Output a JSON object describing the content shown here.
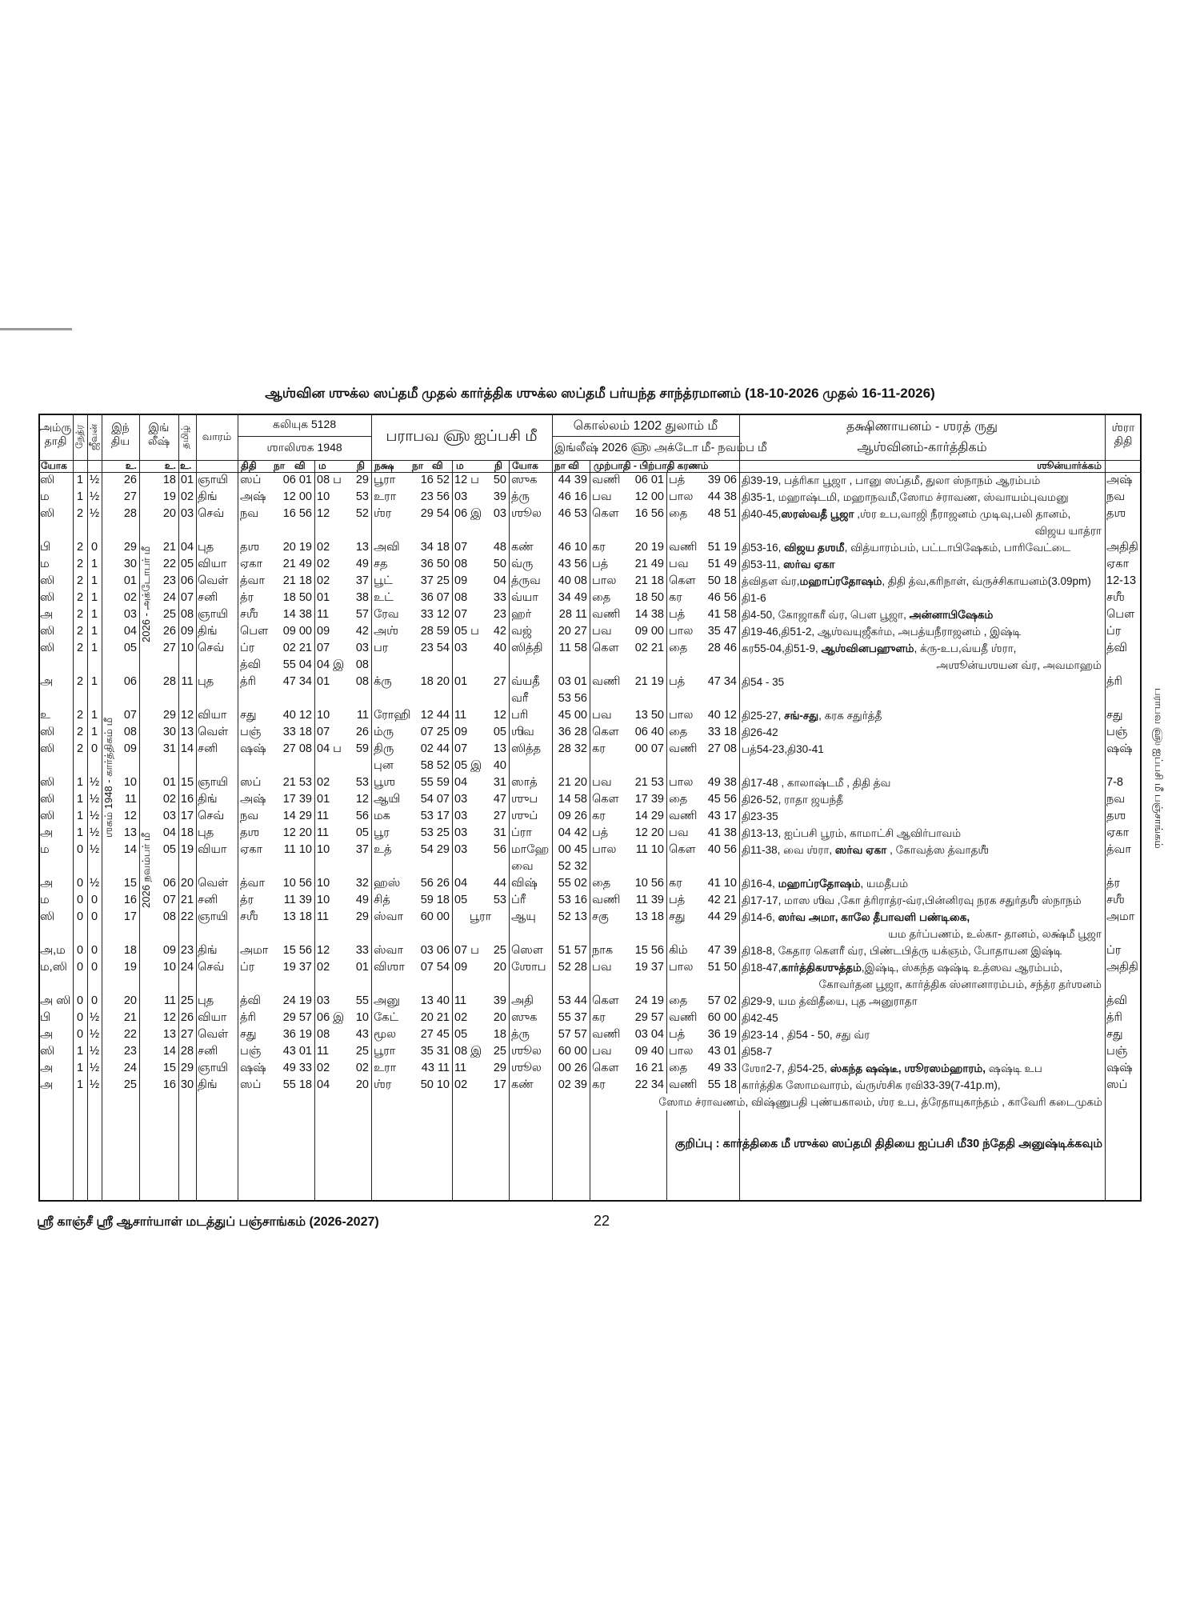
{
  "title": "ஆஶ்வின ஶுக்ல ஸப்தமீ முதல் கார்த்திக ஶுக்ல ஸப்தமீ பர்யந்த சாந்த்ரமானம் (18-10-2026 முதல் 16-11-2026)",
  "header": {
    "amrutadi_1": "அம்ரு",
    "amrutadi_2": "தாதி",
    "netra": "நேத்ர",
    "jeevan": "ஜீவன்",
    "indian_1": "இந்",
    "indian_2": "திய",
    "english_1": "இங்",
    "english_2": "லீஷ்",
    "tamil": "தமிழ்",
    "vaaram": "வாரம்",
    "kaliyuga": "கலியுக 5128",
    "shalishaka": "ஶாலிஶக 1948",
    "parabhava": "பராபவ ௵ ஐப்பசி மீ",
    "kollam": "கொல்லம் 1202 துலாம் மீ",
    "english_year": "இங்லீஷ் 2026 ௵ அக்டோ மீ- நவம்ப மீ",
    "dakshinayana": "தக்ஷிணாயனம் - ஶரத் ருது",
    "ashvina": "ஆஶ்வினம்-கார்த்திகம்",
    "shraddha_1": "ஶ்ரா",
    "shraddha_2": "திதி"
  },
  "subheader": {
    "yoga": "யோக",
    "u_indian": "உ.",
    "u_english": "உ.",
    "u_tamil": "உ.",
    "tithi": "திதி",
    "naa": "நா",
    "vi": "வி",
    "ma": "ம",
    "ni": "நி",
    "nakshatra": "நக்ஷ",
    "naa2": "நா",
    "vi2": "வி",
    "ma2": "ம",
    "ni2": "நி",
    "yogam": "யோக",
    "naa_vi": "நா வி",
    "karanam": "முற்பாதி - பிற்பாதி கரணம்",
    "shunyarkam": "ஶூன்யார்க்கம்"
  },
  "month_labels": {
    "october": "2026 - அக்டோபர் மீ",
    "kartika": "ஶகம் 1948 - கார்த்திகம் மீ",
    "november": "2026 நவம்பர் மீ"
  },
  "rows": [
    {
      "c": [
        "ஸி",
        "1",
        "½",
        "26",
        "18",
        "01",
        "ஞாயி",
        "ஸப்",
        "06 01",
        "08 ப",
        "29",
        "பூரா",
        "16 52",
        "12 ப",
        "50",
        "ஸுக",
        "44 39",
        "வணி",
        "06 01",
        "பத்",
        "39 06",
        "அஷ்"
      ],
      "notes": [
        [
          "தி39-19, பத்ரிகா பூஜா , பானு ஸப்தமீ, துலா ஸ்நாநம் ஆரம்பம்",
          false
        ]
      ]
    },
    {
      "c": [
        "ம",
        "1",
        "½",
        "27",
        "19",
        "02",
        "திங்",
        "அஷ்",
        "12 00",
        "10",
        "53",
        "உரா",
        "23 56",
        "03",
        "39",
        "த்ரு",
        "46 16",
        "பவ",
        "12 00",
        "பால",
        "44 38",
        "நவ"
      ],
      "notes": [
        [
          "தி35-1, மஹாஷ்டமி, மஹாநவமீ,ஸோம ச்ராவண, ஸ்வாயம்புவமனு",
          false
        ]
      ]
    },
    {
      "c": [
        "ஸி",
        "2",
        "½",
        "28",
        "20",
        "03",
        "செவ்",
        "நவ",
        "16 56",
        "12",
        "52",
        "ஶ்ர",
        "29 54",
        "06 இ",
        "03",
        "ஶூல",
        "46 53",
        "கௌ",
        "16 56",
        "தை",
        "48 51",
        "தஶ"
      ],
      "notes": [
        [
          "தி40-45,",
          false
        ],
        [
          "ஸரஸ்வதீ பூஜா",
          true
        ],
        [
          " ,ஶ்ர உப,வாஜி நீராஜனம் முடிவு,பலி தானம்,",
          false
        ]
      ],
      "notes2": "விஜய யாத்ரா"
    },
    {
      "c": [
        "பி",
        "2",
        "0",
        "29",
        "21",
        "04",
        "புத",
        "தஶ",
        "20 19",
        "02",
        "13",
        "அவி",
        "34 18",
        "07",
        "48",
        "கண்",
        "46 10",
        "கர",
        "20 19",
        "வணி",
        "51 19",
        "அதிதி"
      ],
      "notes": [
        [
          "தி53-16, ",
          false
        ],
        [
          "விஜய தஶமீ",
          true
        ],
        [
          ", வித்யாரம்பம், பட்டாபிஷேகம், பாரிவேட்டை",
          false
        ]
      ]
    },
    {
      "c": [
        "ம",
        "2",
        "1",
        "30",
        "22",
        "05",
        "வியா",
        "ஏகா",
        "21 49",
        "02",
        "49",
        "சத",
        "36 50",
        "08",
        "50",
        "வ்ரு",
        "43 56",
        "பத்",
        "21 49",
        "பவ",
        "51 49",
        "ஏகா"
      ],
      "notes": [
        [
          "தி53-11, ",
          false
        ],
        [
          "ஸர்வ ஏகா",
          true
        ]
      ]
    },
    {
      "c": [
        "ஸி",
        "2",
        "1",
        "01",
        "23",
        "06",
        "வெள்",
        "த்வா",
        "21 18",
        "02",
        "37",
        "பூட்",
        "37 25",
        "09",
        "04",
        "த்ருவ",
        "40 08",
        "பால",
        "21 18",
        "கௌ",
        "50 18",
        "12-13"
      ],
      "notes": [
        [
          "த்விதள வ்ர,",
          false
        ],
        [
          "மஹாப்ரதோஷம்",
          true
        ],
        [
          ", திதி த்வ,கரிநாள், வ்ருச்சிகாயனம்(3.09pm)",
          false
        ]
      ]
    },
    {
      "c": [
        "ஸி",
        "2",
        "1",
        "02",
        "24",
        "07",
        "சனி",
        "த்ர",
        "18 50",
        "01",
        "38",
        "உட்",
        "36 07",
        "08",
        "33",
        "வ்யா",
        "34 49",
        "தை",
        "18 50",
        "கர",
        "46 56",
        "சஶீ"
      ],
      "notes": [
        [
          "தி1-6",
          false
        ]
      ]
    },
    {
      "c": [
        "அ",
        "2",
        "1",
        "03",
        "25",
        "08",
        "ஞாயி",
        "சஶீ",
        "14 38",
        "11",
        "57",
        "ரேவ",
        "33 12",
        "07",
        "23",
        "ஹர்",
        "28 11",
        "வணி",
        "14 38",
        "பத்",
        "41 58",
        "பௌ"
      ],
      "notes": [
        [
          "தி4-50, கோஜாகரீ வ்ர, பௌ பூஜா, ",
          false
        ],
        [
          "அன்னாபிஷேகம்",
          true
        ]
      ]
    },
    {
      "c": [
        "ஸி",
        "2",
        "1",
        "04",
        "26",
        "09",
        "திங்",
        "பௌ",
        "09 00",
        "09",
        "42",
        "அஶ்",
        "28 59",
        "05 ப",
        "42",
        "வஜ்",
        "20 27",
        "பவ",
        "09 00",
        "பால",
        "35 47",
        "ப்ர"
      ],
      "notes": [
        [
          "தி19-46,தி51-2, ஆஶ்வயுஜீகர்ம, அபத்யநீராஜனம் , இஷ்டி",
          false
        ]
      ]
    },
    {
      "c": [
        "ஸி",
        "2",
        "1",
        "05",
        "27",
        "10",
        "செவ்",
        "ப்ர",
        "02 21",
        "07",
        "03",
        "பர",
        "23 54",
        "03",
        "40",
        "ஸித்தி",
        "11 58",
        "கௌ",
        "02 21",
        "தை",
        "28 46",
        "த்வி"
      ],
      "notes": [
        [
          "கர55-04,தி51-9, ",
          false
        ],
        [
          "ஆஶ்வினபஹுளம்",
          true
        ],
        [
          ", க்ரு-உப,வ்யதீ ஶ்ரா,",
          false
        ]
      ],
      "line2": {
        "7": "த்வி",
        "8": "55 04",
        "9": "04 இ",
        "10": "08"
      },
      "notes2": "அஶூன்யஶயன வ்ர, அவமாஹம்"
    },
    {
      "c": [
        "அ",
        "2",
        "1",
        "06",
        "28",
        "11",
        "புத",
        "த்ரி",
        "47 34",
        "01",
        "08",
        "க்ரு",
        "18 20",
        "01",
        "27",
        "வ்யதீ",
        "03 01",
        "வணி",
        "21 19",
        "பத்",
        "47 34",
        "த்ரி"
      ],
      "notes": [
        [
          "தி54 - 35",
          false
        ]
      ],
      "line2": {
        "15": "வரீ",
        "16": "53 56"
      }
    },
    {
      "c": [
        "உ",
        "2",
        "1",
        "07",
        "29",
        "12",
        "வியா",
        "சது",
        "40 12",
        "10",
        "11",
        "ரோஹி",
        "12 44",
        "11",
        "12",
        "பரி",
        "45 00",
        "பவ",
        "13 50",
        "பால",
        "40 12",
        "சது"
      ],
      "notes": [
        [
          "தி25-27, ",
          false
        ],
        [
          "சங்-சது",
          true
        ],
        [
          ", கரக சதுர்த்தீ",
          false
        ]
      ]
    },
    {
      "c": [
        "ஸி",
        "2",
        "1",
        "08",
        "30",
        "13",
        "வெள்",
        "பஞ்",
        "33 18",
        "07",
        "26",
        "ம்ரு",
        "07 25",
        "09",
        "05",
        "ஶிவ",
        "36 28",
        "கௌ",
        "06 40",
        "தை",
        "33 18",
        "பஞ்"
      ],
      "notes": [
        [
          "தி26-42",
          false
        ]
      ]
    },
    {
      "c": [
        "ஸி",
        "2",
        "0",
        "09",
        "31",
        "14",
        "சனி",
        "ஷஷ்",
        "27 08",
        "04 ப",
        "59",
        "திரு",
        "02 44",
        "07",
        "13",
        "ஸித்த",
        "28 32",
        "கர",
        "00 07",
        "வணி",
        "27 08",
        "ஷஷ்"
      ],
      "notes": [
        [
          "பத்54-23,தி30-41",
          false
        ]
      ],
      "line2": {
        "11": "புன",
        "12": "58 52",
        "13": "05 இ",
        "14": "40"
      }
    },
    {
      "c": [
        "ஸி",
        "1",
        "½",
        "10",
        "01",
        "15",
        "ஞாயி",
        "ஸப்",
        "21 53",
        "02",
        "53",
        "பூஶ",
        "55 59",
        "04",
        "31",
        "ஸாத்",
        "21 20",
        "பவ",
        "21 53",
        "பால",
        "49 38",
        "7-8"
      ],
      "notes": [
        [
          "தி17-48 , காலாஷ்டமீ , திதி த்வ",
          false
        ]
      ]
    },
    {
      "c": [
        "ஸி",
        "1",
        "½",
        "11",
        "02",
        "16",
        "திங்",
        "அஷ்",
        "17 39",
        "01",
        "12",
        "ஆயி",
        "54 07",
        "03",
        "47",
        "ஶுப",
        "14 58",
        "கௌ",
        "17 39",
        "தை",
        "45 56",
        "நவ"
      ],
      "notes": [
        [
          "தி26-52,  ராதா ஜயந்தீ",
          false
        ]
      ]
    },
    {
      "c": [
        "ஸி",
        "1",
        "½",
        "12",
        "03",
        "17",
        "செவ்",
        "நவ",
        "14 29",
        "11",
        "56",
        "மக",
        "53 17",
        "03",
        "27",
        "ஶுப்",
        "09 26",
        "கர",
        "14 29",
        "வணி",
        "43 17",
        "தஶ"
      ],
      "notes": [
        [
          "தி23-35",
          false
        ]
      ]
    },
    {
      "c": [
        "அ",
        "1",
        "½",
        "13",
        "04",
        "18",
        "புத",
        "தஶ",
        "12 20",
        "11",
        "05",
        "பூர",
        "53 25",
        "03",
        "31",
        "ப்ரா",
        "04 42",
        "பத்",
        "12 20",
        "பவ",
        "41 38",
        "ஏகா"
      ],
      "notes": [
        [
          "தி13-13, ஐப்பசி பூரம், காமாட்சி ஆவிர்பாவம்",
          false
        ]
      ]
    },
    {
      "c": [
        "ம",
        "0",
        "½",
        "14",
        "05",
        "19",
        "வியா",
        "ஏகா",
        "11 10",
        "10",
        "37",
        "உத்",
        "54 29",
        "03",
        "56",
        "மாஹே",
        "00 45",
        "பால",
        "11 10",
        "கௌ",
        "40 56",
        "த்வா"
      ],
      "notes": [
        [
          "தி11-38, வை ஶ்ரா, ",
          false
        ],
        [
          "ஸர்வ ஏகா",
          true
        ],
        [
          " , கோவத்ஸ த்வாதஶீ",
          false
        ]
      ],
      "line2": {
        "15": "வை",
        "16": "52 32"
      }
    },
    {
      "c": [
        "அ",
        "0",
        "½",
        "15",
        "06",
        "20",
        "வெள்",
        "த்வா",
        "10 56",
        "10",
        "32",
        "ஹஸ்",
        "56 26",
        "04",
        "44",
        "விஷ்",
        "55 02",
        "தை",
        "10 56",
        "கர",
        "41 10",
        "த்ர"
      ],
      "notes": [
        [
          "தி16-4, ",
          false
        ],
        [
          "மஹாப்ரதோஷம்",
          true
        ],
        [
          ", யமதீபம்",
          false
        ]
      ]
    },
    {
      "c": [
        "ம",
        "0",
        "0",
        "16",
        "07",
        "21",
        "சனி",
        "த்ர",
        "11 39",
        "10",
        "49",
        "சித்",
        "59 18",
        "05",
        "53",
        "ப்ரீ",
        "53 16",
        "வணி",
        "11 39",
        "பத்",
        "42 21",
        "சஶீ"
      ],
      "notes": [
        [
          "தி17-17, மாஸ ஶிவ ,கோ த்ரிராத்ர-வ்ர,பின்னிரவு நரக சதுர்தஶீ ஸ்நாநம்",
          false
        ]
      ]
    },
    {
      "c": [
        "ஸி",
        "0",
        "0",
        "17",
        "08",
        "22",
        "ஞாயி",
        "சஶீ",
        "13 18",
        "11",
        "29",
        "ஸ்வா",
        "60 00",
        "பூரா",
        "",
        "ஆயு",
        "52 13",
        "சகு",
        "13 18",
        "சது",
        "44 29",
        "அமா"
      ],
      "notes": [
        [
          "தி14-6, ",
          false
        ],
        [
          "ஸர்வ அமா, காலே தீபாவளி பண்டிகை,",
          true
        ]
      ],
      "notes2": "யம தர்ப்பணம், உல்கா- தானம், லக்ஷ்மீ பூஜா"
    },
    {
      "c": [
        "அ,ம",
        "0",
        "0",
        "18",
        "09",
        "23",
        "திங்",
        "அமா",
        "15 56",
        "12",
        "33",
        "ஸ்வா",
        "03 06",
        "07 ப",
        "25",
        "ஸௌ",
        "51 57",
        "நாக",
        "15 56",
        "கிம்",
        "47 39",
        "ப்ர"
      ],
      "notes": [
        [
          "தி18-8, கேதார கௌரீ வ்ர, பிண்டபித்ரு யக்ஞம், போதாயன இஷ்டி",
          false
        ]
      ]
    },
    {
      "c": [
        "ம,ஸி",
        "0",
        "0",
        "19",
        "10",
        "24",
        "செவ்",
        "ப்ர",
        "19 37",
        "02",
        "01",
        "விஶா",
        "07 54",
        "09",
        "20",
        "ஶோப",
        "52 28",
        "பவ",
        "19 37",
        "பால",
        "51 50",
        "அதிதி"
      ],
      "notes": [
        [
          "தி18-47,",
          false
        ],
        [
          "கார்த்திகஶுத்தம்",
          true
        ],
        [
          ",இஷ்டி, ஸ்கந்த ஷஷ்டி உத்ஸவ ஆரம்பம்,",
          false
        ]
      ],
      "notes2": "கோவர்தன பூஜா, கார்த்திக ஸ்னானாரம்பம், சந்த்ர தர்ஶனம்"
    },
    {
      "c": [
        "அ ஸி",
        "0",
        "0",
        "20",
        "11",
        "25",
        "புத",
        "த்வி",
        "24 19",
        "03",
        "55",
        "அனு",
        "13 40",
        "11",
        "39",
        "அதி",
        "53 44",
        "கௌ",
        "24 19",
        "தை",
        "57 02",
        "த்வி"
      ],
      "notes": [
        [
          "தி29-9, யம த்விதீயை, புத அனுராதா",
          false
        ]
      ]
    },
    {
      "c": [
        "பி",
        "0",
        "½",
        "21",
        "12",
        "26",
        "வியா",
        "த்ரி",
        "29 57",
        "06 இ",
        "10",
        "கேட்",
        "20 21",
        "02",
        "20",
        "ஸுக",
        "55 37",
        "கர",
        "29 57",
        "வணி",
        "60 00",
        "த்ரி"
      ],
      "notes": [
        [
          "தி42-45",
          false
        ]
      ]
    },
    {
      "c": [
        "அ",
        "0",
        "½",
        "22",
        "13",
        "27",
        "வெள்",
        "சது",
        "36 19",
        "08",
        "43",
        "மூல",
        "27 45",
        "05",
        "18",
        "த்ரு",
        "57 57",
        "வணி",
        "03 04",
        "பத்",
        "36 19",
        "சது"
      ],
      "notes": [
        [
          "தி23-14 , தி54 - 50, சது வ்ர",
          false
        ]
      ]
    },
    {
      "c": [
        "ஸி",
        "1",
        "½",
        "23",
        "14",
        "28",
        "சனி",
        "பஞ்",
        "43 01",
        "11",
        "25",
        "பூரா",
        "35 31",
        "08 இ",
        "25",
        "ஶூல",
        "60 00",
        "பவ",
        "09 40",
        "பால",
        "43 01",
        "பஞ்"
      ],
      "notes": [
        [
          "தி58-7",
          false
        ]
      ]
    },
    {
      "c": [
        "அ",
        "1",
        "½",
        "24",
        "15",
        "29",
        "ஞாயி",
        "ஷஷ்",
        "49 33",
        "02",
        "02",
        "உரா",
        "43 11",
        "11",
        "29",
        "ஶூல",
        "00 26",
        "கௌ",
        "16 21",
        "தை",
        "49 33",
        "ஷஷ்"
      ],
      "notes": [
        [
          "ஶோ2-7, தி54-25, ",
          false
        ],
        [
          "ஸ்கந்த ஷஷ்டீ, ஶூரஸம்ஹாரம்,",
          true
        ],
        [
          " ஷஷ்டி உப",
          false
        ]
      ]
    },
    {
      "c": [
        "அ",
        "1",
        "½",
        "25",
        "16",
        "30",
        "திங்",
        "ஸப்",
        "55 18",
        "04",
        "20",
        "ஶ்ர",
        "50 10",
        "02",
        "17",
        "கண்",
        "02 39",
        "கர",
        "22 34",
        "வணி",
        "55 18",
        "ஸப்"
      ],
      "notes": [
        [
          "கார்த்திக ஸோமவாரம், வ்ருஶ்சிக ரவி33-39(7-41p.m),",
          false
        ]
      ],
      "notes_wide": "ஸோம ச்ராவணம்,  விஷ்ணுபதி புண்யகாலம், ஶ்ர உப, த்ரேதாயுகாந்தம் , காவேரி கடைமுகம்"
    }
  ],
  "note": "குறிப்பு : கார்த்திகை மீ ஶுக்ல ஸப்தமி திதியை ஐப்பசி மீ30 ந்தேதி அனுஷ்டிக்கவும்",
  "footer": {
    "publication": "ஸ்ரீ காஞ்சீ ஸ்ரீ ஆசார்யாள் மடத்துப் பஞ்சாங்கம் (2026-2027)",
    "page_number": "22",
    "side_label": "பராபவ ௵ ஐப்பசி மீ பஞ்சாங்கம்"
  }
}
